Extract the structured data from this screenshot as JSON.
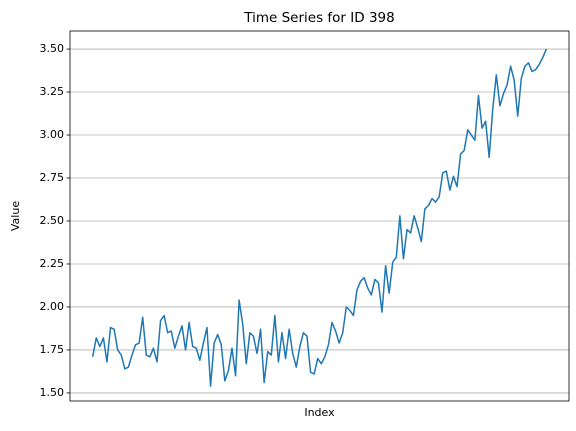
{
  "chart_data": {
    "type": "line",
    "title": "Time Series for ID 398",
    "xlabel": "Index",
    "ylabel": "Value",
    "series": [
      {
        "name": "ID 398",
        "color": "#1f77b4",
        "values": [
          1.71,
          1.82,
          1.77,
          1.82,
          1.68,
          1.88,
          1.87,
          1.75,
          1.72,
          1.64,
          1.65,
          1.72,
          1.78,
          1.79,
          1.94,
          1.72,
          1.71,
          1.76,
          1.68,
          1.92,
          1.95,
          1.85,
          1.86,
          1.76,
          1.83,
          1.89,
          1.75,
          1.91,
          1.77,
          1.76,
          1.69,
          1.79,
          1.88,
          1.54,
          1.79,
          1.84,
          1.78,
          1.57,
          1.63,
          1.76,
          1.6,
          2.04,
          1.9,
          1.67,
          1.85,
          1.83,
          1.73,
          1.87,
          1.56,
          1.74,
          1.72,
          1.95,
          1.68,
          1.85,
          1.7,
          1.87,
          1.73,
          1.65,
          1.77,
          1.85,
          1.83,
          1.62,
          1.61,
          1.7,
          1.67,
          1.71,
          1.78,
          1.91,
          1.86,
          1.79,
          1.85,
          2.0,
          1.98,
          1.95,
          2.1,
          2.15,
          2.17,
          2.11,
          2.07,
          2.16,
          2.14,
          1.97,
          2.24,
          2.08,
          2.26,
          2.29,
          2.53,
          2.28,
          2.45,
          2.43,
          2.53,
          2.46,
          2.38,
          2.57,
          2.59,
          2.63,
          2.61,
          2.64,
          2.78,
          2.79,
          2.68,
          2.76,
          2.7,
          2.89,
          2.91,
          3.03,
          3.0,
          2.97,
          3.23,
          3.04,
          3.08,
          2.87,
          3.15,
          3.35,
          3.17,
          3.24,
          3.29,
          3.4,
          3.32,
          3.11,
          3.33,
          3.4,
          3.42,
          3.37,
          3.38,
          3.41,
          3.45,
          3.5
        ]
      }
    ],
    "ylim": [
      1.453,
      3.605
    ],
    "yticks": [
      {
        "value": 1.5,
        "label": "1.50"
      },
      {
        "value": 1.75,
        "label": "1.75"
      },
      {
        "value": 2.0,
        "label": "2.00"
      },
      {
        "value": 2.25,
        "label": "2.25"
      },
      {
        "value": 2.5,
        "label": "2.50"
      },
      {
        "value": 2.75,
        "label": "2.75"
      },
      {
        "value": 3.0,
        "label": "3.00"
      },
      {
        "value": 3.25,
        "label": "3.25"
      },
      {
        "value": 3.5,
        "label": "3.50"
      }
    ],
    "grid": "y"
  }
}
